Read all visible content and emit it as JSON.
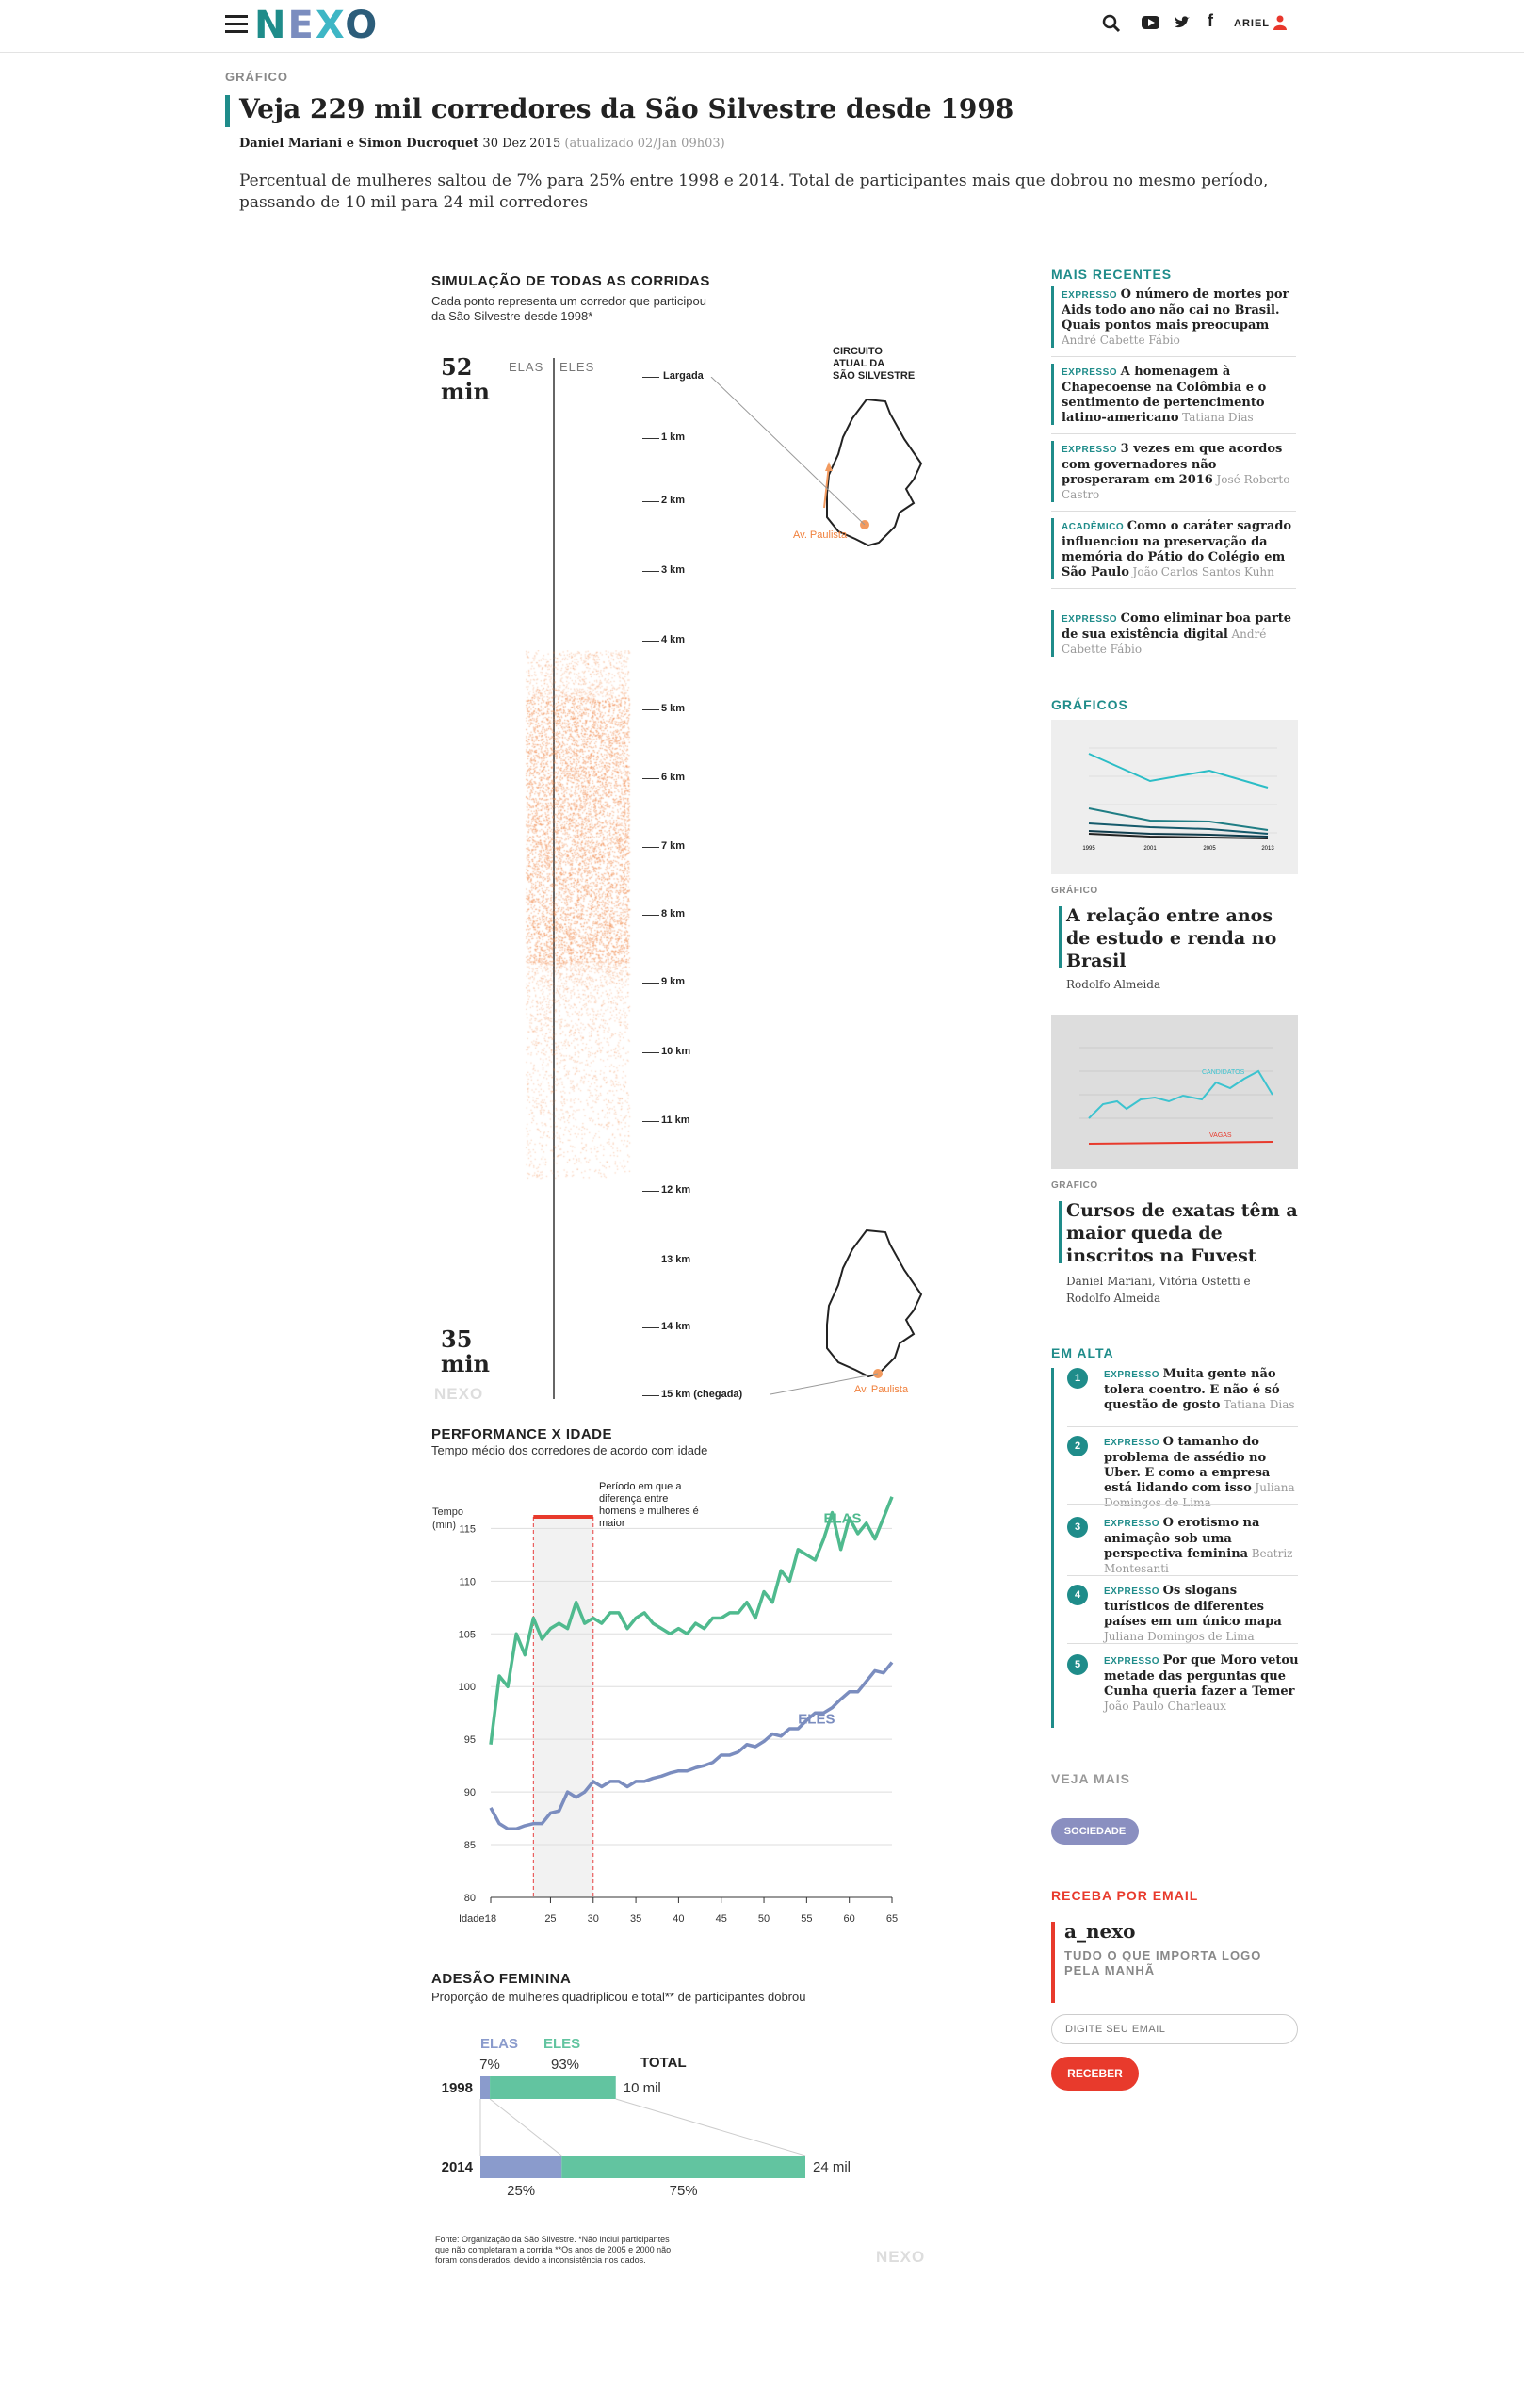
{
  "header": {
    "logo": "NEXO",
    "user": "ARIEL",
    "icons": [
      "menu-icon",
      "search-icon",
      "youtube-icon",
      "twitter-icon",
      "facebook-icon",
      "user-icon"
    ]
  },
  "article": {
    "kicker": "GRÁFICO",
    "title": "Veja 229 mil corredores da São Silvestre desde 1998",
    "authors": "Daniel Mariani e Simon Ducroquet",
    "date": "30 Dez 2015",
    "updated": "(atualizado 02/Jan 09h03)",
    "dek": "Percentual de mulheres saltou de 7% para 25% entre 1998 e 2014. Total de participantes mais que dobrou no mesmo período, passando de 10 mil para 24 mil corredores"
  },
  "simulation": {
    "title": "SIMULAÇÃO DE TODAS AS CORRIDAS",
    "subtitle_1": "Cada ponto representa um corredor que participou",
    "subtitle_2": "da São Silvestre desde 1998*",
    "time_top": "52",
    "time_bottom": "35",
    "time_unit": "min",
    "label_elas": "ELAS",
    "label_eles": "ELES",
    "km_labels": [
      "Largada",
      "1 km",
      "2 km",
      "3 km",
      "4 km",
      "5 km",
      "6 km",
      "7 km",
      "8 km",
      "9 km",
      "10 km",
      "11 km",
      "12 km",
      "13 km",
      "14 km",
      "15 km (chegada)"
    ],
    "circuit_1": "CIRCUITO",
    "circuit_2": "ATUAL DA",
    "circuit_3": "SÃO SILVESTRE",
    "paulista": "Av. Paulista",
    "watermark": "NEXO"
  },
  "chart_data": [
    {
      "type": "line",
      "title": "PERFORMANCE X IDADE",
      "subtitle": "Tempo médio dos corredores de acordo com idade",
      "ylabel": "Tempo (min)",
      "xlabel": "Idade:",
      "ylim": [
        80,
        117
      ],
      "yticks": [
        80,
        85,
        90,
        95,
        100,
        105,
        110,
        115
      ],
      "xticks": [
        18,
        25,
        30,
        35,
        40,
        45,
        50,
        55,
        60,
        65
      ],
      "annotation": "Período em que a diferença entre homens e mulheres é maior",
      "highlight_range": [
        23,
        30
      ],
      "series": [
        {
          "name": "ELAS",
          "color": "#4fba8e",
          "x": [
            18,
            19,
            20,
            21,
            22,
            23,
            24,
            25,
            26,
            27,
            28,
            29,
            30,
            31,
            32,
            33,
            34,
            35,
            36,
            37,
            38,
            39,
            40,
            41,
            42,
            43,
            44,
            45,
            46,
            47,
            48,
            49,
            50,
            51,
            52,
            53,
            54,
            55,
            56,
            57,
            58,
            59,
            60,
            61,
            62,
            63,
            64,
            65
          ],
          "y": [
            94.5,
            101,
            100,
            105,
            103,
            106.5,
            104.5,
            105.5,
            106,
            105.5,
            108,
            106,
            106.5,
            106,
            107,
            107,
            105.5,
            106.5,
            107,
            106,
            105.5,
            105,
            105.5,
            105,
            106,
            105.5,
            106.5,
            106.5,
            107,
            107,
            108,
            106.5,
            109,
            108,
            111,
            110,
            113,
            112.5,
            112,
            114,
            116.5,
            113,
            116,
            114.5,
            115.5,
            114,
            116,
            118
          ]
        },
        {
          "name": "ELES",
          "color": "#7b8dbf",
          "x": [
            18,
            19,
            20,
            21,
            22,
            23,
            24,
            25,
            26,
            27,
            28,
            29,
            30,
            31,
            32,
            33,
            34,
            35,
            36,
            37,
            38,
            39,
            40,
            41,
            42,
            43,
            44,
            45,
            46,
            47,
            48,
            49,
            50,
            51,
            52,
            53,
            54,
            55,
            56,
            57,
            58,
            59,
            60,
            61,
            62,
            63,
            64,
            65
          ],
          "y": [
            88.5,
            87,
            86.5,
            86.5,
            86.8,
            87,
            87,
            88,
            88.2,
            90,
            89.5,
            90,
            91,
            90.5,
            91,
            91,
            90.5,
            91,
            91,
            91.3,
            91.5,
            91.8,
            92,
            92,
            92.3,
            92.5,
            92.8,
            93.5,
            93.5,
            93.8,
            94.5,
            94.3,
            94.8,
            95.5,
            95.3,
            96,
            96,
            96.8,
            97.5,
            97.5,
            98,
            98.8,
            99.5,
            99.5,
            100.5,
            101.5,
            101.3,
            102.3
          ]
        }
      ]
    },
    {
      "type": "bar",
      "title": "ADESÃO FEMININA",
      "subtitle": "Proporção de mulheres quadriplicou e total** de participantes dobrou",
      "legend": [
        "ELAS",
        "ELES",
        "TOTAL"
      ],
      "categories": [
        "1998",
        "2014"
      ],
      "series": [
        {
          "name": "ELAS",
          "color": "#8a9bcc",
          "values": [
            7,
            25
          ]
        },
        {
          "name": "ELES",
          "color": "#62c4a0",
          "values": [
            93,
            75
          ]
        }
      ],
      "totals": [
        "10 mil",
        "24 mil"
      ],
      "labels_1998": [
        "7%",
        "93%"
      ],
      "labels_2014": [
        "25%",
        "75%"
      ]
    }
  ],
  "footnote_1": "Fonte: Organização da São Silvestre. *Não inclui participantes",
  "footnote_2": "que não completaram a corrida **Os anos de 2005 e 2000 não",
  "footnote_3": "foram considerados, devido a inconsistência nos dados.",
  "sidebar": {
    "recent_title": "MAIS RECENTES",
    "recent": [
      {
        "tag": "EXPRESSO",
        "headline": "O número de mortes por Aids todo ano não cai no Brasil. Quais pontos mais preocupam",
        "author": "André Cabette Fábio"
      },
      {
        "tag": "EXPRESSO",
        "headline": "A homenagem à Chapecoense na Colômbia e o sentimento de pertencimento latino-americano",
        "author": "Tatiana Dias"
      },
      {
        "tag": "EXPRESSO",
        "headline": "3 vezes em que acordos com governadores não prosperaram em 2016",
        "author": "José Roberto Castro"
      },
      {
        "tag": "ACADÊMICO",
        "headline": "Como o caráter sagrado influenciou na preservação da memória do Pátio do Colégio em São Paulo",
        "author": "João Carlos Santos Kuhn"
      },
      {
        "tag": "EXPRESSO",
        "headline": "Como eliminar boa parte de sua existência digital",
        "author": "André Cabette Fábio"
      }
    ],
    "graphics_title": "GRÁFICOS",
    "graphics": [
      {
        "kicker": "GRÁFICO",
        "title": "A relação entre anos de estudo e renda no Brasil",
        "author": "Rodolfo Almeida",
        "years": [
          "1995",
          "2001",
          "2005",
          "2013"
        ]
      },
      {
        "kicker": "GRÁFICO",
        "title": "Cursos de exatas têm a maior queda de inscritos na Fuvest",
        "author": "Daniel Mariani, Vitória Ostetti e Rodolfo Almeida",
        "label_a": "CANDIDATOS",
        "label_b": "VAGAS"
      }
    ],
    "trending_title": "EM ALTA",
    "trending": [
      {
        "n": "1",
        "tag": "EXPRESSO",
        "headline": "Muita gente não tolera coentro. E não é só questão de gosto",
        "author": "Tatiana Dias"
      },
      {
        "n": "2",
        "tag": "EXPRESSO",
        "headline": "O tamanho do problema de assédio no Uber. E como a empresa está lidando com isso",
        "author": "Juliana Domingos de Lima"
      },
      {
        "n": "3",
        "tag": "EXPRESSO",
        "headline": "O erotismo na animação sob uma perspectiva feminina",
        "author": "Beatriz Montesanti"
      },
      {
        "n": "4",
        "tag": "EXPRESSO",
        "headline": "Os slogans turísticos de diferentes países em um único mapa",
        "author": "Juliana Domingos de Lima"
      },
      {
        "n": "5",
        "tag": "EXPRESSO",
        "headline": "Por que Moro vetou metade das perguntas que Cunha queria fazer a Temer",
        "author": "João Paulo Charleaux"
      }
    ],
    "see_more": "VEJA MAIS",
    "tag_button": "SOCIEDADE",
    "email_title": "RECEBA POR EMAIL",
    "newsletter_name": "a_nexo",
    "newsletter_desc_1": "TUDO O QUE IMPORTA LOGO",
    "newsletter_desc_2": "PELA MANHÃ",
    "email_placeholder": "DIGITE SEU EMAIL",
    "subscribe": "RECEBER"
  }
}
